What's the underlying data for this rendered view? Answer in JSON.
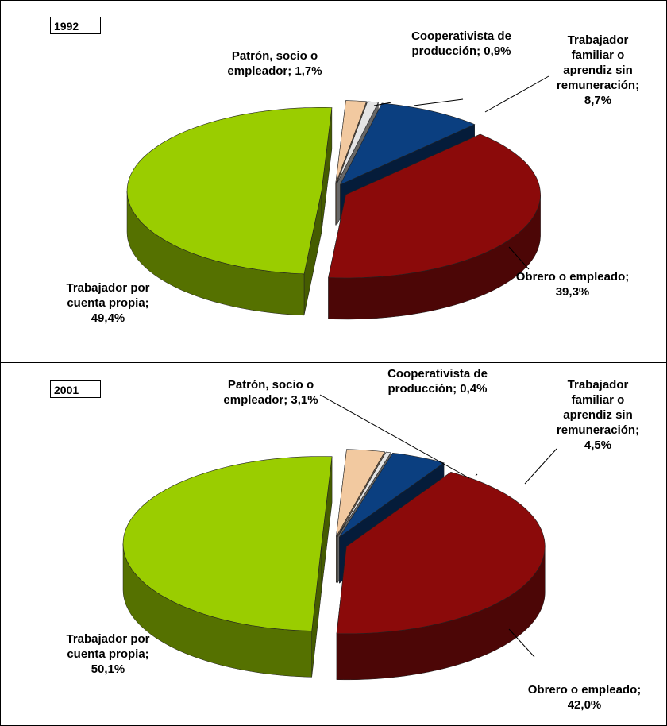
{
  "chart_data": [
    {
      "type": "pie",
      "title": "1992",
      "values": [
        1.7,
        0.9,
        8.7,
        39.3,
        49.4
      ],
      "value_labels": [
        "Patrón, socio o empleador; 1,7%",
        "Cooperativista de producción; 0,9%",
        "Trabajador familiar o aprendiz sin remuneración; 8,7%",
        "Obrero o empleado; 39,3%",
        "Trabajador por cuenta propia; 49,4%"
      ],
      "colors": [
        "#f2c9a0",
        "#e4e4e4",
        "#0b3f80",
        "#8b0a0a",
        "#9acd00"
      ]
    },
    {
      "type": "pie",
      "title": "2001",
      "values": [
        3.1,
        0.4,
        4.5,
        42.0,
        50.1
      ],
      "value_labels": [
        "Patrón, socio o empleador; 3,1%",
        "Cooperativista de producción; 0,4%",
        "Trabajador familiar o aprendiz sin remuneración; 4,5%",
        "Obrero o empleado; 42,0%",
        "Trabajador por cuenta propia; 50,1%"
      ],
      "colors": [
        "#f2c9a0",
        "#e4e4e4",
        "#0b3f80",
        "#8b0a0a",
        "#9acd00"
      ]
    }
  ]
}
